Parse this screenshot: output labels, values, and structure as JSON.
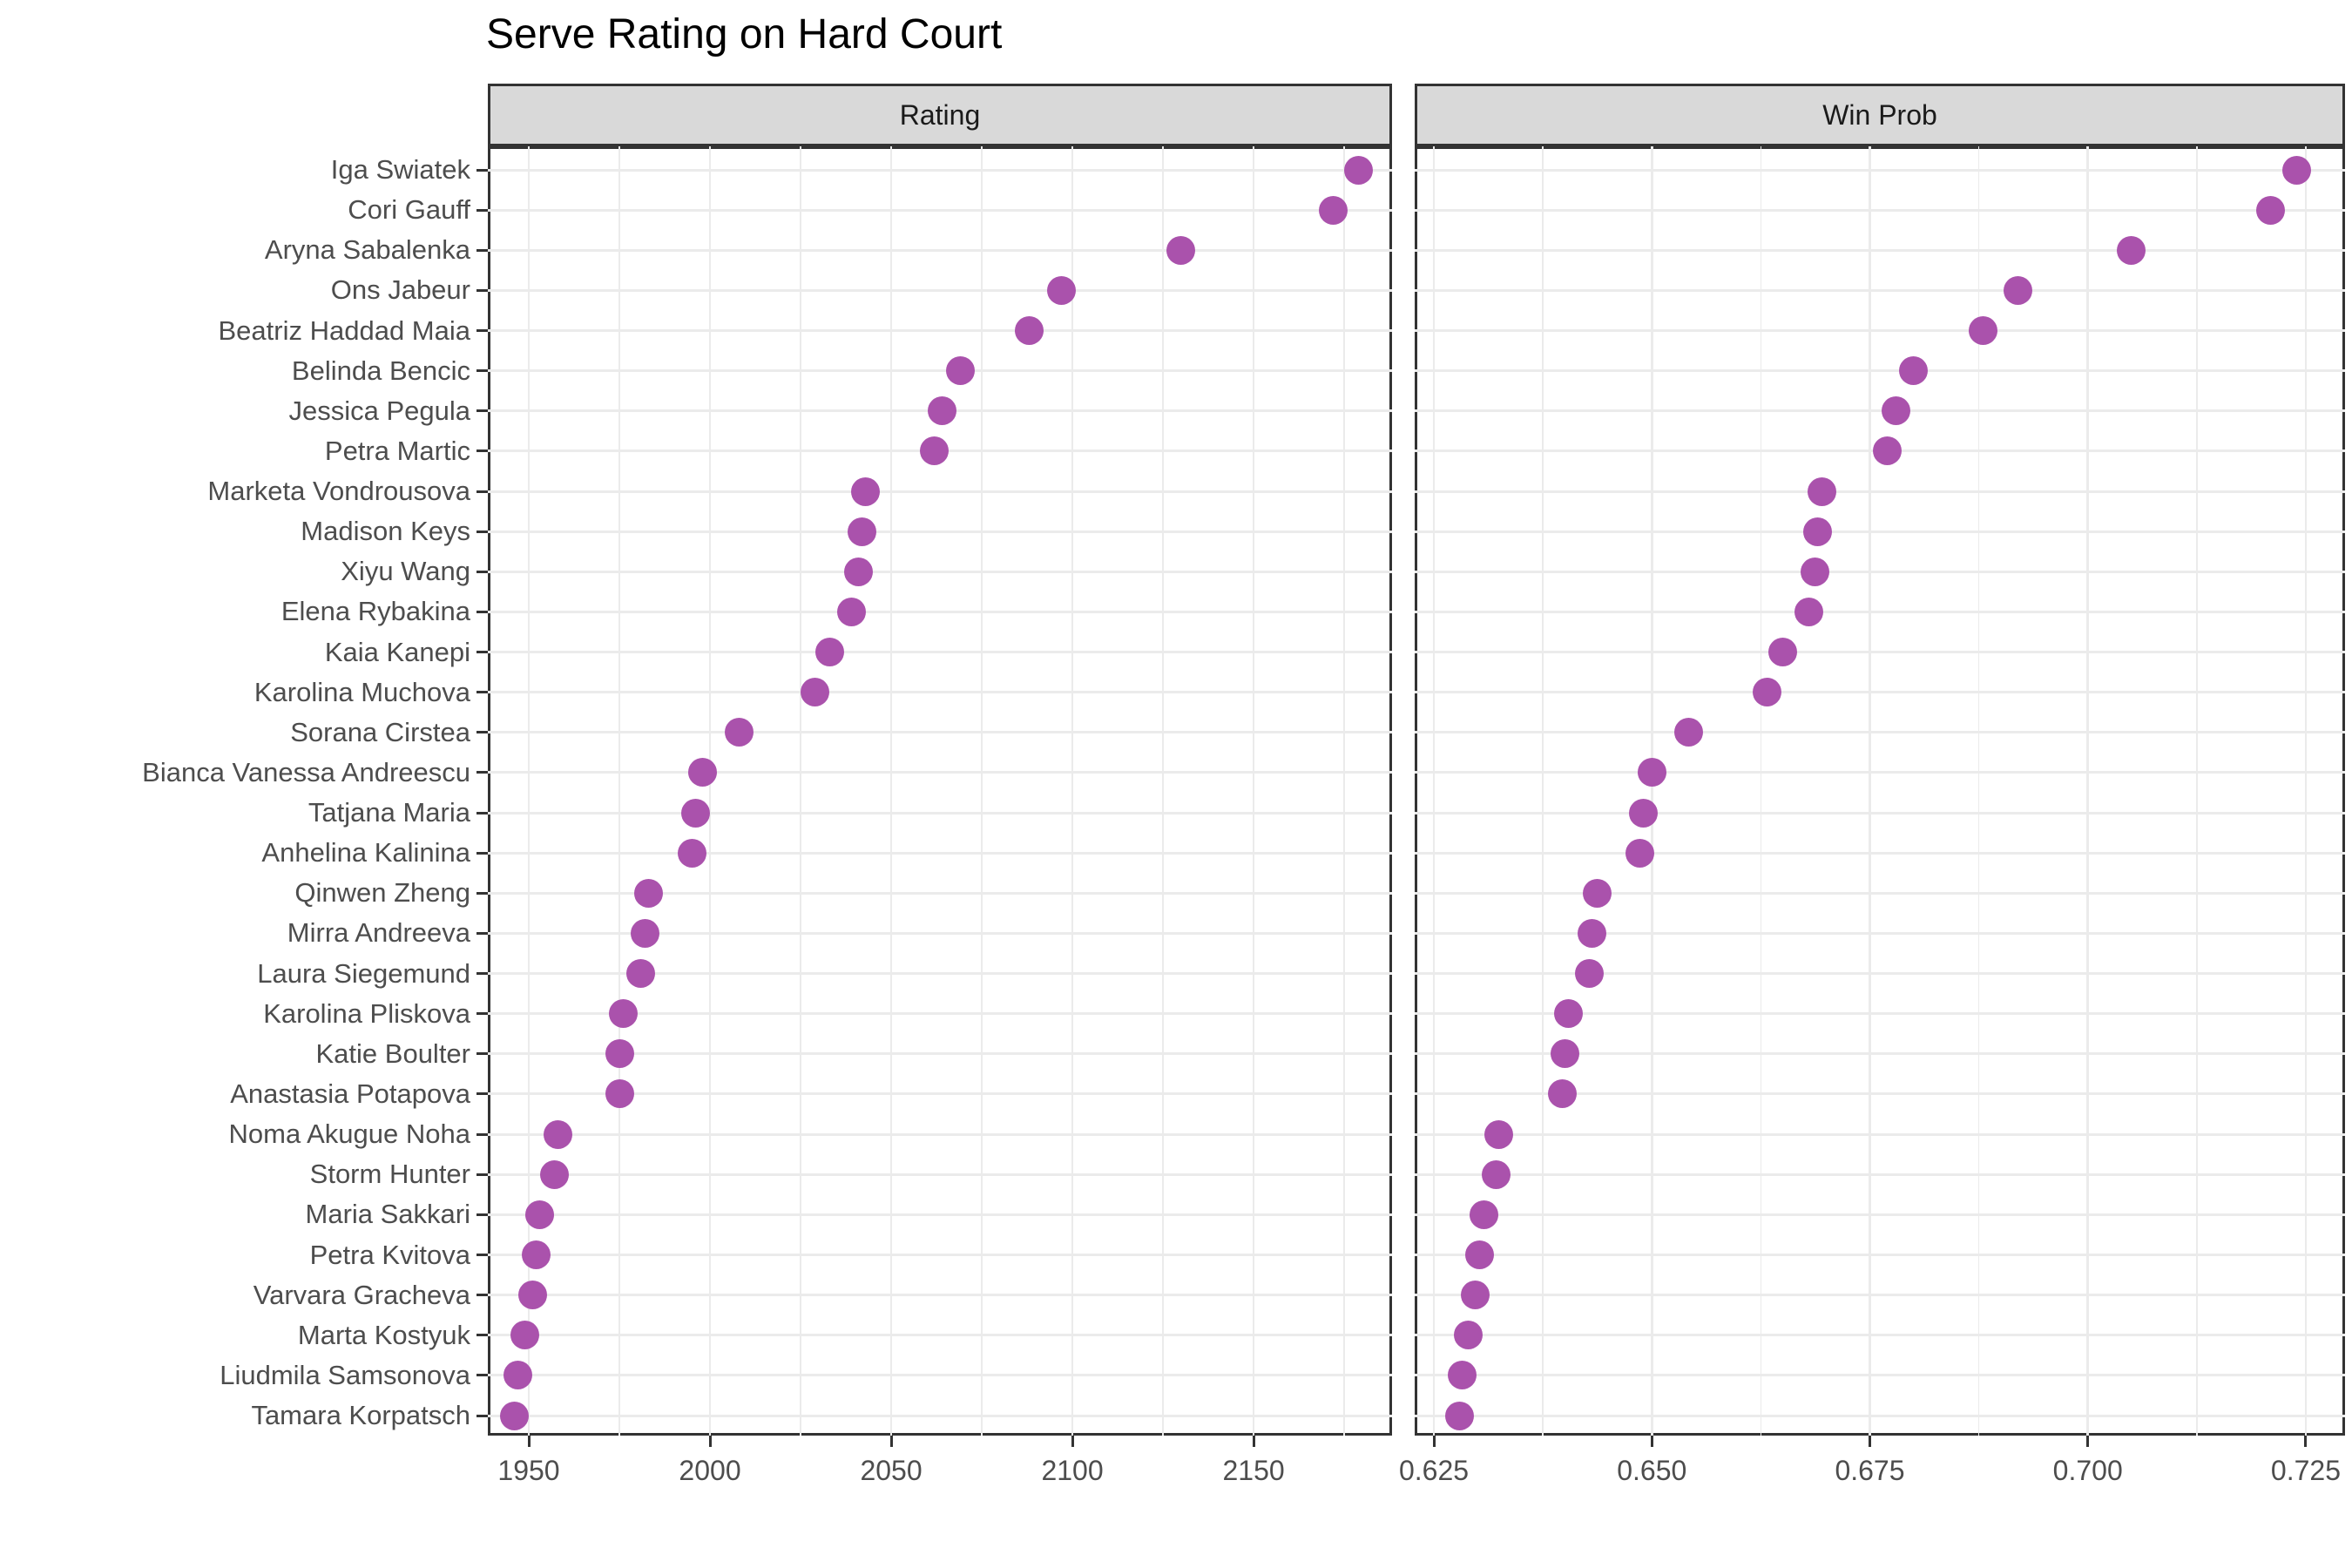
{
  "title": "Serve Rating on Hard Court",
  "colors": {
    "point": "#aa52ac",
    "strip_fill": "#d9d9d9",
    "panel_border": "#333333",
    "gridline": "#ebebeb",
    "axis_text": "#4d4d4d",
    "title_text": "#000000"
  },
  "chart_data": {
    "type": "scatter",
    "title": "Serve Rating on Hard Court",
    "legend": "none",
    "grid": true,
    "point_color": "#aa52ac",
    "facets": [
      {
        "label": "Rating",
        "value_key": "rating",
        "xlim": [
          1938.7,
          2188.2
        ],
        "major_ticks": [
          {
            "v": 1950,
            "label": "1950"
          },
          {
            "v": 2000,
            "label": "2000"
          },
          {
            "v": 2050,
            "label": "2050"
          },
          {
            "v": 2100,
            "label": "2100"
          },
          {
            "v": 2150,
            "label": "2150"
          }
        ],
        "minor_ticks": [
          1975,
          2025,
          2075,
          2125,
          2175
        ]
      },
      {
        "label": "Win Prob",
        "value_key": "win_prob",
        "xlim": [
          0.6228,
          0.7295
        ],
        "major_ticks": [
          {
            "v": 0.625,
            "label": "0.625"
          },
          {
            "v": 0.65,
            "label": "0.650"
          },
          {
            "v": 0.675,
            "label": "0.675"
          },
          {
            "v": 0.7,
            "label": "0.700"
          },
          {
            "v": 0.725,
            "label": "0.725"
          }
        ],
        "minor_ticks": [
          0.6375,
          0.6625,
          0.6875,
          0.7125
        ]
      }
    ],
    "players": [
      {
        "name": "Iga Swiatek",
        "rating": 2179,
        "win_prob": 0.724
      },
      {
        "name": "Cori Gauff",
        "rating": 2172,
        "win_prob": 0.721
      },
      {
        "name": "Aryna Sabalenka",
        "rating": 2130,
        "win_prob": 0.705
      },
      {
        "name": "Ons Jabeur",
        "rating": 2097,
        "win_prob": 0.692
      },
      {
        "name": "Beatriz Haddad Maia",
        "rating": 2088,
        "win_prob": 0.688
      },
      {
        "name": "Belinda Bencic",
        "rating": 2069,
        "win_prob": 0.68
      },
      {
        "name": "Jessica Pegula",
        "rating": 2064,
        "win_prob": 0.678
      },
      {
        "name": "Petra Martic",
        "rating": 2062,
        "win_prob": 0.677
      },
      {
        "name": "Marketa Vondrousova",
        "rating": 2043,
        "win_prob": 0.6695
      },
      {
        "name": "Madison Keys",
        "rating": 2042,
        "win_prob": 0.669
      },
      {
        "name": "Xiyu Wang",
        "rating": 2041,
        "win_prob": 0.6687
      },
      {
        "name": "Elena Rybakina",
        "rating": 2039,
        "win_prob": 0.668
      },
      {
        "name": "Kaia Kanepi",
        "rating": 2033,
        "win_prob": 0.665
      },
      {
        "name": "Karolina Muchova",
        "rating": 2029,
        "win_prob": 0.6632
      },
      {
        "name": "Sorana Cirstea",
        "rating": 2008,
        "win_prob": 0.6542
      },
      {
        "name": "Bianca Vanessa Andreescu",
        "rating": 1998,
        "win_prob": 0.65
      },
      {
        "name": "Tatjana Maria",
        "rating": 1996,
        "win_prob": 0.649
      },
      {
        "name": "Anhelina Kalinina",
        "rating": 1995,
        "win_prob": 0.6486
      },
      {
        "name": "Qinwen Zheng",
        "rating": 1983,
        "win_prob": 0.6437
      },
      {
        "name": "Mirra Andreeva",
        "rating": 1982,
        "win_prob": 0.6431
      },
      {
        "name": "Laura Siegemund",
        "rating": 1981,
        "win_prob": 0.6428
      },
      {
        "name": "Karolina Pliskova",
        "rating": 1976,
        "win_prob": 0.6404
      },
      {
        "name": "Katie Boulter",
        "rating": 1975,
        "win_prob": 0.64
      },
      {
        "name": "Anastasia Potapova",
        "rating": 1975,
        "win_prob": 0.6397
      },
      {
        "name": "Noma Akugue Noha",
        "rating": 1958,
        "win_prob": 0.6324
      },
      {
        "name": "Storm Hunter",
        "rating": 1957,
        "win_prob": 0.6321
      },
      {
        "name": "Maria Sakkari",
        "rating": 1953,
        "win_prob": 0.6307
      },
      {
        "name": "Petra Kvitova",
        "rating": 1952,
        "win_prob": 0.6302
      },
      {
        "name": "Varvara Gracheva",
        "rating": 1951,
        "win_prob": 0.6297
      },
      {
        "name": "Marta Kostyuk",
        "rating": 1949,
        "win_prob": 0.6289
      },
      {
        "name": "Liudmila Samsonova",
        "rating": 1947,
        "win_prob": 0.6282
      },
      {
        "name": "Tamara Korpatsch",
        "rating": 1946,
        "win_prob": 0.6279
      }
    ]
  }
}
